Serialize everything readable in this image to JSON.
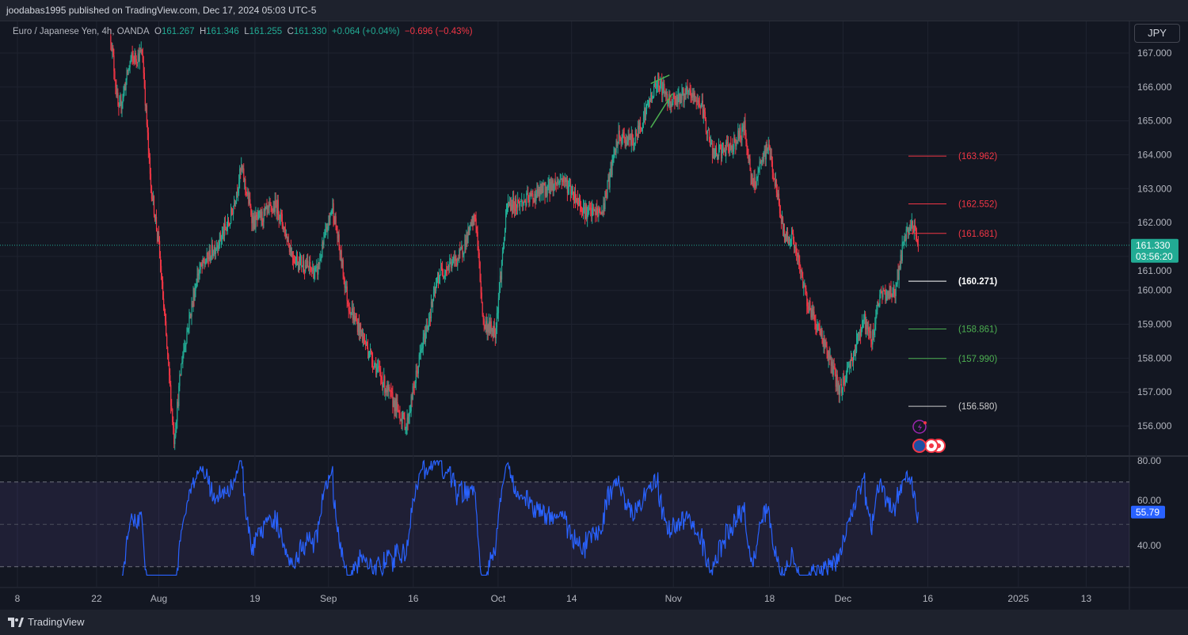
{
  "publish_line": "joodabas1995 published on TradingView.com, Dec 17, 2024 05:03 UTC-5",
  "legend": {
    "symbol": "Euro / Japanese Yen, 4h, OANDA",
    "o_label": "O",
    "o": "161.267",
    "h_label": "H",
    "h": "161.346",
    "l_label": "L",
    "l": "161.255",
    "c_label": "C",
    "c": "161.330",
    "change": "+0.064 (+0.04%)",
    "change2": "−0.696 (−0.43%)"
  },
  "currency_button": "JPY",
  "footer": {
    "brand": "TradingView"
  },
  "colors": {
    "up": "#22ab94",
    "down": "#f23645",
    "rsi": "#2962ff",
    "bg": "#131722"
  },
  "chart_data": {
    "type": "candlestick",
    "title": "Euro / Japanese Yen, 4h, OANDA",
    "x_unit": "days since Jul 8 2024",
    "price_axis": {
      "ylim": [
        155.2,
        167.6
      ],
      "ticks": [
        "167.000",
        "166.000",
        "165.000",
        "164.000",
        "163.000",
        "162.000",
        "161.000",
        "160.000",
        "159.000",
        "158.000",
        "157.000",
        "156.000"
      ]
    },
    "time_axis": {
      "ticks": [
        {
          "label": "8",
          "day": 0
        },
        {
          "label": "22",
          "day": 14
        },
        {
          "label": "Aug",
          "day": 25
        },
        {
          "label": "19",
          "day": 42
        },
        {
          "label": "Sep",
          "day": 55
        },
        {
          "label": "16",
          "day": 70
        },
        {
          "label": "Oct",
          "day": 85
        },
        {
          "label": "14",
          "day": 98
        },
        {
          "label": "Nov",
          "day": 116
        },
        {
          "label": "18",
          "day": 133
        },
        {
          "label": "Dec",
          "day": 146
        },
        {
          "label": "16",
          "day": 161
        },
        {
          "label": "2025",
          "day": 177
        },
        {
          "label": "13",
          "day": 189
        }
      ]
    },
    "price_path": [
      [
        16.5,
        167.5
      ],
      [
        17.9,
        165.2
      ],
      [
        20,
        166.8
      ],
      [
        22.1,
        167
      ],
      [
        23.5,
        163.2
      ],
      [
        24.9,
        161.5
      ],
      [
        27.7,
        155.6
      ],
      [
        29.1,
        158
      ],
      [
        31.9,
        160.5
      ],
      [
        35,
        161.3
      ],
      [
        37.5,
        162
      ],
      [
        39.6,
        163.6
      ],
      [
        41.7,
        162
      ],
      [
        45.9,
        162.5
      ],
      [
        48.7,
        161
      ],
      [
        52.9,
        160.5
      ],
      [
        55.7,
        162.5
      ],
      [
        58.5,
        159.6
      ],
      [
        62.7,
        158
      ],
      [
        65.5,
        157
      ],
      [
        68.8,
        156
      ],
      [
        71.1,
        158
      ],
      [
        74.6,
        160.5
      ],
      [
        78.2,
        161
      ],
      [
        81,
        162.2
      ],
      [
        82.4,
        159
      ],
      [
        84.5,
        158.8
      ],
      [
        86.6,
        162.5
      ],
      [
        89.4,
        162.6
      ],
      [
        93.6,
        163
      ],
      [
        96.4,
        163.3
      ],
      [
        100.6,
        162.3
      ],
      [
        103.4,
        162.3
      ],
      [
        106.2,
        164.5
      ],
      [
        109,
        164.4
      ],
      [
        113.2,
        166.2
      ],
      [
        115.3,
        165.6
      ],
      [
        118.8,
        165.8
      ],
      [
        120.9,
        165.5
      ],
      [
        123,
        164
      ],
      [
        126,
        164.2
      ],
      [
        128.6,
        164.8
      ],
      [
        130,
        163
      ],
      [
        132.8,
        164.3
      ],
      [
        135.6,
        161.6
      ],
      [
        137,
        161.6
      ],
      [
        139.8,
        159.6
      ],
      [
        142.6,
        158.5
      ],
      [
        145.4,
        157
      ],
      [
        148.2,
        158.3
      ],
      [
        149.6,
        159.2
      ],
      [
        151,
        158.5
      ],
      [
        152.4,
        159.8
      ],
      [
        155.2,
        160
      ],
      [
        156.6,
        161.3
      ],
      [
        158,
        162
      ],
      [
        159.4,
        161.33
      ]
    ],
    "last_price": "161.330",
    "countdown": "03:56:20",
    "levels": [
      {
        "value": 163.962,
        "label": "(163.962)",
        "color": "#f23645"
      },
      {
        "value": 162.552,
        "label": "(162.552)",
        "color": "#f23645"
      },
      {
        "value": 161.681,
        "label": "(161.681)",
        "color": "#f23645"
      },
      {
        "value": 160.271,
        "label": "(160.271)",
        "color": "#ffffff"
      },
      {
        "value": 158.861,
        "label": "(158.861)",
        "color": "#4caf50"
      },
      {
        "value": 157.99,
        "label": "(157.990)",
        "color": "#4caf50"
      },
      {
        "value": 156.58,
        "label": "(156.580)",
        "color": "#cccccc"
      }
    ],
    "drawings": [
      {
        "from": [
          112,
          166.1
        ],
        "to": [
          115.3,
          166.35
        ]
      },
      {
        "from": [
          112,
          164.8
        ],
        "to": [
          115.8,
          165.8
        ]
      }
    ],
    "rsi": {
      "ylim": [
        25,
        82
      ],
      "ticks": [
        "80.00",
        "60.00",
        "40.00"
      ],
      "upper_band": 70,
      "lower_band": 30,
      "mid": 50,
      "last": "55.79"
    }
  }
}
